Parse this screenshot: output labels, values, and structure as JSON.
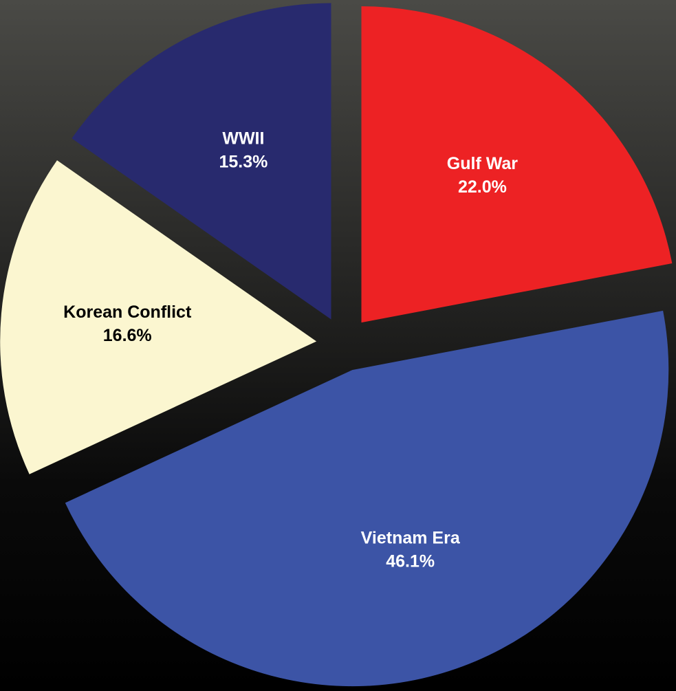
{
  "chart_data": {
    "type": "pie",
    "categories": [
      "Gulf War",
      "Vietnam Era",
      "Korean Conflict",
      "WWII"
    ],
    "values": [
      22.0,
      46.1,
      16.6,
      15.3
    ],
    "value_labels": [
      "22.0%",
      "46.1%",
      "16.6%",
      "15.3%"
    ],
    "colors": [
      "#ed2224",
      "#3c54a6",
      "#fbf6d0",
      "#282a6e"
    ]
  }
}
